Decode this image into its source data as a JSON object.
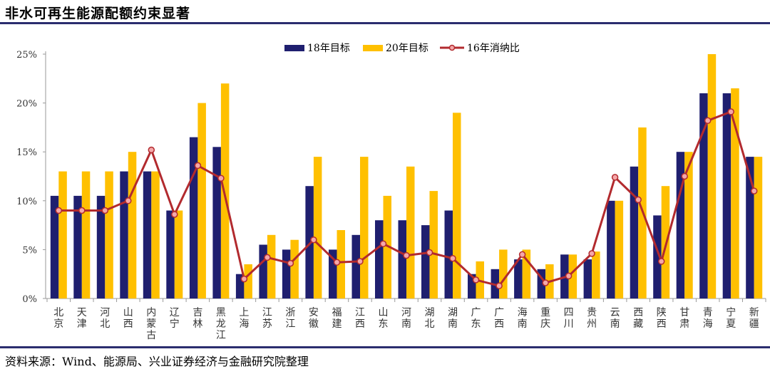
{
  "header": {
    "title": "非水可再生能源配额约束显著"
  },
  "footer": {
    "source": "资料来源：Wind、能源局、兴业证券经济与金融研究院整理"
  },
  "colors": {
    "series_18": "#1f1f6f",
    "series_20": "#ffc000",
    "series_16": "#b22a2e",
    "marker_fill": "#f4a7a9",
    "rule": "#2b2d6e"
  },
  "chart_data": {
    "type": "bar",
    "categories": [
      "北京",
      "天津",
      "河北",
      "山西",
      "内蒙古",
      "辽宁",
      "吉林",
      "黑龙江",
      "上海",
      "江苏",
      "浙江",
      "安徽",
      "福建",
      "江西",
      "山东",
      "河南",
      "湖北",
      "湖南",
      "广东",
      "广西",
      "海南",
      "重庆",
      "四川",
      "贵州",
      "云南",
      "西藏",
      "陕西",
      "甘肃",
      "青海",
      "宁夏",
      "新疆"
    ],
    "series": [
      {
        "name": "18年目标",
        "type": "bar",
        "values": [
          10.5,
          10.5,
          10.5,
          13,
          13,
          9,
          16.5,
          15.5,
          2.5,
          5.5,
          5,
          11.5,
          5,
          6.5,
          8,
          8,
          7.5,
          9,
          2.5,
          3,
          4,
          3,
          4.5,
          4,
          10,
          13.5,
          8.5,
          15,
          21,
          21,
          14.5
        ]
      },
      {
        "name": "20年目标",
        "type": "bar",
        "values": [
          13,
          13,
          13,
          15,
          13,
          9,
          20,
          22,
          3.5,
          6.5,
          6,
          14.5,
          7,
          14.5,
          10.5,
          13.5,
          11,
          19,
          3.8,
          5,
          5,
          3.5,
          4.5,
          4.8,
          10,
          17.5,
          11.5,
          15,
          25,
          21.5,
          14.5
        ]
      },
      {
        "name": "16年消纳比",
        "type": "line",
        "values": [
          9,
          9,
          9,
          10,
          15.2,
          8.6,
          13.6,
          12.3,
          2,
          4.2,
          3.6,
          6,
          3.7,
          3.8,
          5.6,
          4.4,
          4.7,
          4.1,
          1.9,
          1.3,
          4.5,
          1.6,
          2.3,
          4.6,
          12.4,
          10.1,
          3.8,
          12.5,
          18.2,
          19.1,
          11
        ]
      }
    ],
    "y_ticks": [
      "0%",
      "5%",
      "10%",
      "15%",
      "20%",
      "25%"
    ],
    "ylim": [
      0,
      25
    ],
    "legend_position": "top-center",
    "grid": false
  }
}
